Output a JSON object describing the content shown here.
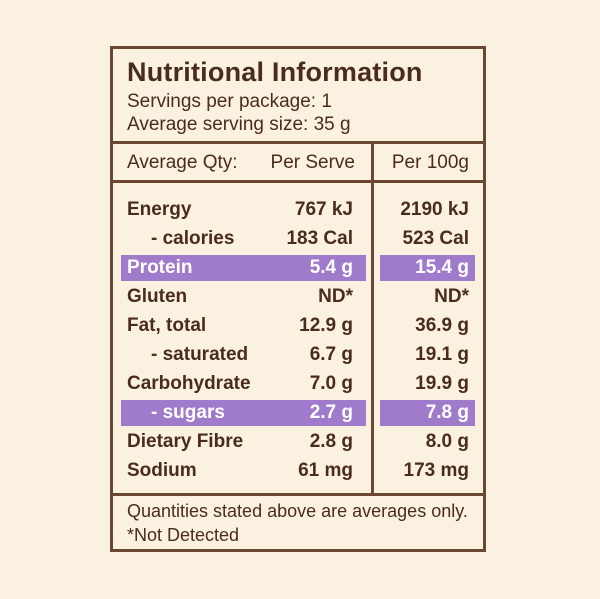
{
  "label": {
    "title": "Nutritional Information",
    "servings_per_package": "Servings per package: 1",
    "serving_size": "Average serving size: 35 g",
    "headers": {
      "qty": "Average Qty:",
      "per_serve": "Per Serve",
      "per_100g": "Per 100g"
    },
    "rows": [
      {
        "name": "Energy",
        "per_serve": "767 kJ",
        "per_100g": "2190 kJ",
        "indent": false,
        "highlight": false
      },
      {
        "name": "- calories",
        "per_serve": "183 Cal",
        "per_100g": "523 Cal",
        "indent": true,
        "highlight": false
      },
      {
        "name": "Protein",
        "per_serve": "5.4 g",
        "per_100g": "15.4 g",
        "indent": false,
        "highlight": true
      },
      {
        "name": "Gluten",
        "per_serve": "ND*",
        "per_100g": "ND*",
        "indent": false,
        "highlight": false
      },
      {
        "name": "Fat, total",
        "per_serve": "12.9 g",
        "per_100g": "36.9 g",
        "indent": false,
        "highlight": false
      },
      {
        "name": "- saturated",
        "per_serve": "6.7 g",
        "per_100g": "19.1 g",
        "indent": true,
        "highlight": false
      },
      {
        "name": "Carbohydrate",
        "per_serve": "7.0 g",
        "per_100g": "19.9 g",
        "indent": false,
        "highlight": false
      },
      {
        "name": "- sugars",
        "per_serve": "2.7 g",
        "per_100g": "7.8 g",
        "indent": true,
        "highlight": true
      },
      {
        "name": "Dietary Fibre",
        "per_serve": "2.8 g",
        "per_100g": "8.0 g",
        "indent": false,
        "highlight": false
      },
      {
        "name": "Sodium",
        "per_serve": "61 mg",
        "per_100g": "173 mg",
        "indent": false,
        "highlight": false
      }
    ],
    "footnote_1": "Quantities stated above are averages only.",
    "footnote_2": "*Not Detected"
  },
  "colors": {
    "background": "#fbf1e1",
    "text": "#4a2c1c",
    "border": "#6b4631",
    "highlight": "#a17bcb"
  }
}
